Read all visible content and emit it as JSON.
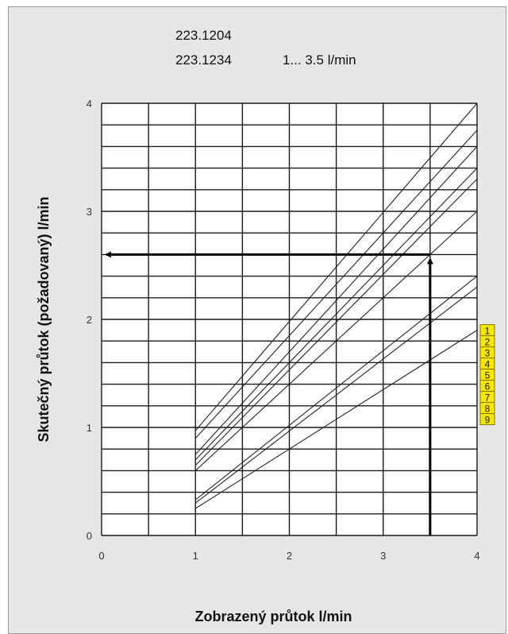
{
  "chart_data": {
    "type": "line",
    "title_lines": [
      "223.1204",
      "223.1234"
    ],
    "range_label": "1... 3.5 l/min",
    "xlabel": "Zobrazený průtok  l/min",
    "ylabel": "Skutečný průtok (požadovaný)  l/min",
    "xlim": [
      0,
      4
    ],
    "ylim": [
      0,
      4
    ],
    "x_ticks": [
      "0",
      "1",
      "2",
      "3",
      "4"
    ],
    "y_ticks": [
      "0",
      "1",
      "2",
      "3",
      "4"
    ],
    "grid": true,
    "series": [
      {
        "name": "1",
        "points": [
          [
            1.0,
            0.25
          ],
          [
            4.0,
            1.9
          ]
        ]
      },
      {
        "name": "2",
        "points": [
          [
            1.0,
            0.3
          ],
          [
            4.0,
            2.3
          ]
        ]
      },
      {
        "name": "3",
        "points": [
          [
            1.0,
            0.33
          ],
          [
            4.0,
            2.4
          ]
        ]
      },
      {
        "name": "4",
        "points": [
          [
            1.0,
            0.6
          ],
          [
            4.0,
            3.0
          ]
        ]
      },
      {
        "name": "5",
        "points": [
          [
            1.0,
            0.65
          ],
          [
            4.0,
            3.3
          ]
        ]
      },
      {
        "name": "6",
        "points": [
          [
            1.0,
            0.7
          ],
          [
            4.0,
            3.4
          ]
        ]
      },
      {
        "name": "7",
        "points": [
          [
            1.0,
            0.75
          ],
          [
            4.0,
            3.6
          ]
        ]
      },
      {
        "name": "8",
        "points": [
          [
            1.0,
            0.9
          ],
          [
            4.0,
            3.75
          ]
        ]
      },
      {
        "name": "9",
        "points": [
          [
            1.0,
            0.97
          ],
          [
            4.0,
            4.0
          ]
        ]
      }
    ],
    "example_arrow": {
      "x": 3.5,
      "y": 2.6
    },
    "colors": {
      "background": "#e6e6e6",
      "plot_area": "#ffffff",
      "grid": "#1a1a1a",
      "lines": "#222222",
      "arrow": "#000000",
      "badge_fill": "#f7e600",
      "badge_border": "#8a7a00"
    }
  }
}
